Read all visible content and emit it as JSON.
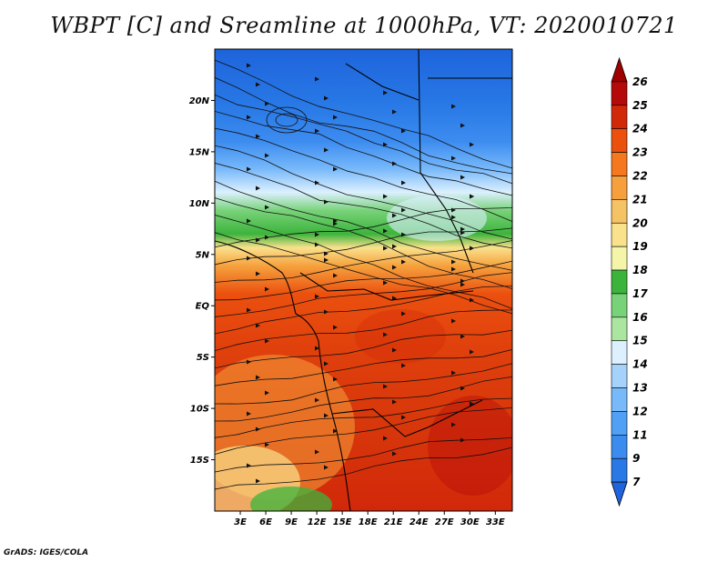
{
  "chart_data": {
    "type": "heatmap",
    "title": "WBPT [C] and Sreamline at 1000hPa, VT: 2020010721",
    "x_ticks": [
      "3E",
      "6E",
      "9E",
      "12E",
      "15E",
      "18E",
      "21E",
      "24E",
      "27E",
      "30E",
      "33E"
    ],
    "x_values": [
      3,
      6,
      9,
      12,
      15,
      18,
      21,
      24,
      27,
      30,
      33
    ],
    "xlim": [
      0,
      35
    ],
    "y_ticks": [
      "20N",
      "15N",
      "10N",
      "5N",
      "EQ",
      "5S",
      "10S",
      "15S"
    ],
    "y_values": [
      20,
      15,
      10,
      5,
      0,
      -5,
      -10,
      -15
    ],
    "ylim": [
      -20,
      25
    ],
    "colorbar": {
      "labels": [
        "7",
        "9",
        "11",
        "12",
        "13",
        "14",
        "15",
        "16",
        "17",
        "18",
        "19",
        "20",
        "21",
        "22",
        "23",
        "24",
        "25",
        "26"
      ],
      "colors": [
        "#1e64dc",
        "#2878e6",
        "#3c8cf0",
        "#50a0f5",
        "#78b9fa",
        "#a5d2fa",
        "#dcf0ff",
        "#aae6a0",
        "#78d278",
        "#3cb43c",
        "#f5f5aa",
        "#fae18c",
        "#f5c364",
        "#f5a03c",
        "#f5781e",
        "#eb500f",
        "#d2280a",
        "#b40a0a",
        "#a00000"
      ]
    }
  },
  "footer": {
    "credit": "GrADS: IGES/COLA"
  }
}
